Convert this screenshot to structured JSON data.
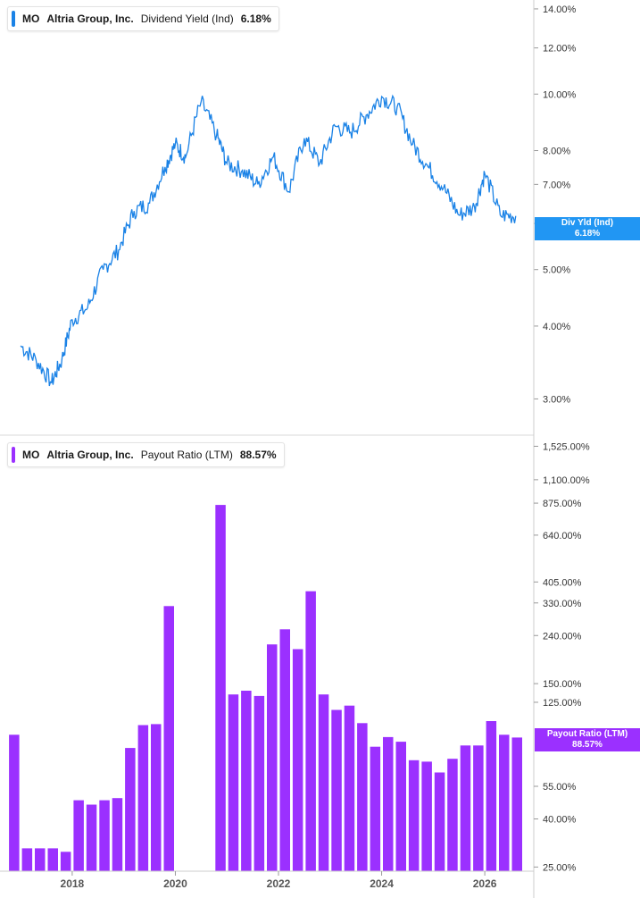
{
  "colors": {
    "yield_line": "#1a82e6",
    "yield_tag": "#2196f3",
    "payout_bar": "#9b30ff",
    "payout_tag": "#9b30ff"
  },
  "legend_top": {
    "ticker": "MO",
    "company": "Altria Group, Inc.",
    "metric": "Dividend Yield (Ind)",
    "value": "6.18%"
  },
  "legend_bottom": {
    "ticker": "MO",
    "company": "Altria Group, Inc.",
    "metric": "Payout Ratio (LTM)",
    "value": "88.57%"
  },
  "tag_top": {
    "label": "Div Yld (Ind)",
    "value": "6.18%"
  },
  "tag_bottom": {
    "label": "Payout Ratio (LTM)",
    "value": "88.57%"
  },
  "chart_data": [
    {
      "type": "line",
      "title": "",
      "series": [
        {
          "name": "Dividend Yield (Ind)"
        }
      ],
      "y_scale": "log",
      "ylim": [
        2.6,
        14.5
      ],
      "yticks": [
        "14.00%",
        "12.00%",
        "10.00%",
        "8.00%",
        "7.00%",
        "6.00%",
        "5.00%",
        "4.00%",
        "3.00%"
      ],
      "ytick_values": [
        14,
        12,
        10,
        8,
        7,
        6,
        5,
        4,
        3
      ],
      "x": [
        2017.0,
        2017.3,
        2017.6,
        2017.8,
        2018.0,
        2018.3,
        2018.6,
        2018.9,
        2019.2,
        2019.5,
        2019.8,
        2020.0,
        2020.2,
        2020.5,
        2020.8,
        2021.0,
        2021.3,
        2021.6,
        2021.9,
        2022.2,
        2022.5,
        2022.8,
        2023.1,
        2023.4,
        2023.7,
        2024.0,
        2024.3,
        2024.6,
        2024.9,
        2025.2,
        2025.5,
        2025.8,
        2026.0,
        2026.3,
        2026.6
      ],
      "values": [
        3.7,
        3.5,
        3.2,
        3.5,
        4.1,
        4.3,
        5.0,
        5.4,
        6.3,
        6.5,
        7.5,
        8.2,
        7.8,
        9.7,
        8.5,
        7.6,
        7.4,
        7.0,
        7.8,
        6.8,
        8.4,
        7.6,
        8.8,
        8.6,
        9.2,
        9.9,
        9.5,
        8.2,
        7.5,
        6.9,
        6.2,
        6.4,
        7.3,
        6.2,
        6.18
      ]
    },
    {
      "type": "bar",
      "title": "",
      "series": [
        {
          "name": "Payout Ratio (LTM)"
        }
      ],
      "y_scale": "log",
      "ylim": [
        24,
        1700
      ],
      "yticks": [
        "1,525.00%",
        "1,100.00%",
        "875.00%",
        "640.00%",
        "405.00%",
        "330.00%",
        "240.00%",
        "150.00%",
        "125.00%",
        "55.00%",
        "40.00%",
        "25.00%"
      ],
      "ytick_values": [
        1525,
        1100,
        875,
        640,
        405,
        330,
        240,
        150,
        125,
        55,
        40,
        25
      ],
      "xticks": [
        "2018",
        "2020",
        "2022",
        "2024",
        "2026"
      ],
      "xtick_values": [
        2018,
        2020,
        2022,
        2024,
        2026
      ],
      "x": [
        2016.875,
        2017.125,
        2017.375,
        2017.625,
        2017.875,
        2018.125,
        2018.375,
        2018.625,
        2018.875,
        2019.125,
        2019.375,
        2019.625,
        2019.875,
        2020.125,
        2020.375,
        2020.625,
        2020.875,
        2021.125,
        2021.375,
        2021.625,
        2021.875,
        2022.125,
        2022.375,
        2022.625,
        2022.875,
        2023.125,
        2023.375,
        2023.625,
        2023.875,
        2024.125,
        2024.375,
        2024.625,
        2024.875,
        2025.125,
        2025.375,
        2025.625,
        2025.875,
        2026.125,
        2026.375,
        2026.625
      ],
      "values": [
        91,
        30,
        30,
        30,
        29,
        48,
        46,
        48,
        49,
        80,
        100,
        101,
        320,
        null,
        null,
        null,
        860,
        135,
        140,
        133,
        220,
        255,
        210,
        370,
        135,
        116,
        121,
        102,
        81,
        89,
        85,
        71,
        70,
        63,
        72,
        82,
        82,
        104,
        91,
        88.57
      ]
    }
  ]
}
